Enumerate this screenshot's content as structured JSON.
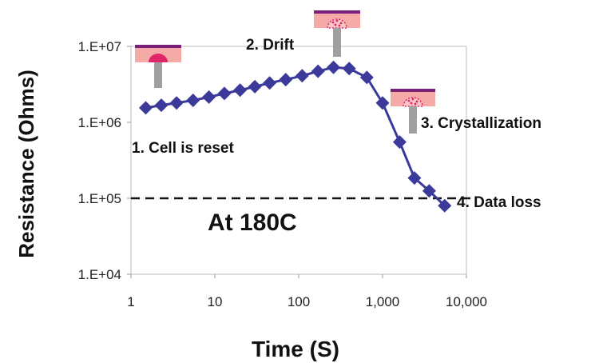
{
  "chart_data": {
    "type": "scatter",
    "xlabel": "Time (S)",
    "ylabel": "Resistance (Ohms)",
    "x_scale": "log",
    "y_scale": "log",
    "xlim": [
      1,
      10000
    ],
    "ylim": [
      10000,
      10000000
    ],
    "x_ticks": [
      "1",
      "10",
      "100",
      "1,000",
      "10,000"
    ],
    "y_ticks": [
      "1.E+04",
      "1.E+05",
      "1.E+06",
      "1.E+07"
    ],
    "grid": false,
    "series": [
      {
        "color": "#3b3a9a",
        "marker": "diamond",
        "x": [
          1.5,
          2.3,
          3.5,
          5.5,
          8.5,
          13,
          20,
          30,
          45,
          70,
          110,
          170,
          260,
          400,
          650,
          1000,
          1600,
          2400,
          3600,
          5500
        ],
        "y": [
          1550000,
          1680000,
          1800000,
          1950000,
          2150000,
          2400000,
          2650000,
          2950000,
          3300000,
          3650000,
          4100000,
          4700000,
          5300000,
          5100000,
          3900000,
          1800000,
          550000,
          185000,
          125000,
          80000
        ]
      }
    ],
    "reference_line": {
      "y": 100000,
      "style": "dashed",
      "color": "#111111"
    },
    "annotations": [
      {
        "text": "1. Cell is reset"
      },
      {
        "text": "2. Drift"
      },
      {
        "text": "3. Crystallization"
      },
      {
        "text": "4. Data loss"
      },
      {
        "text": "At 180C"
      }
    ],
    "cell_icon_colors": {
      "bar": "#7a1f7a",
      "body": "#f5aaa8",
      "dome": "#e0256a",
      "stem": "#a0a0a0"
    }
  }
}
